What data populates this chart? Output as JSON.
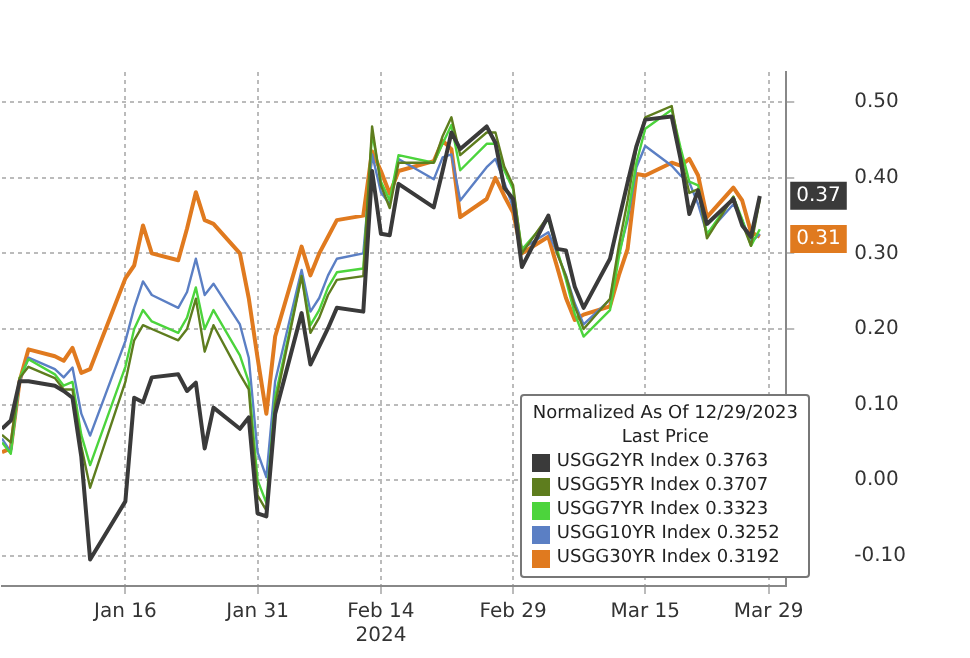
{
  "chart_data": {
    "type": "line",
    "x": [
      "2024-01-02",
      "2024-01-03",
      "2024-01-04",
      "2024-01-05",
      "2024-01-08",
      "2024-01-09",
      "2024-01-10",
      "2024-01-11",
      "2024-01-12",
      "2024-01-16",
      "2024-01-17",
      "2024-01-18",
      "2024-01-19",
      "2024-01-22",
      "2024-01-23",
      "2024-01-24",
      "2024-01-25",
      "2024-01-26",
      "2024-01-29",
      "2024-01-30",
      "2024-01-31",
      "2024-02-01",
      "2024-02-02",
      "2024-02-05",
      "2024-02-06",
      "2024-02-07",
      "2024-02-08",
      "2024-02-09",
      "2024-02-12",
      "2024-02-13",
      "2024-02-14",
      "2024-02-15",
      "2024-02-16",
      "2024-02-20",
      "2024-02-21",
      "2024-02-22",
      "2024-02-23",
      "2024-02-26",
      "2024-02-27",
      "2024-02-28",
      "2024-02-29",
      "2024-03-01",
      "2024-03-04",
      "2024-03-05",
      "2024-03-06",
      "2024-03-07",
      "2024-03-08",
      "2024-03-11",
      "2024-03-12",
      "2024-03-13",
      "2024-03-14",
      "2024-03-15",
      "2024-03-18",
      "2024-03-19",
      "2024-03-20",
      "2024-03-21",
      "2024-03-22",
      "2024-03-25",
      "2024-03-26",
      "2024-03-27",
      "2024-03-28"
    ],
    "series": [
      {
        "name": "USGG2YR Index 0.3763",
        "color": "#3a3a3a",
        "values": [
          0.068,
          0.079,
          0.131,
          0.131,
          0.125,
          0.118,
          0.109,
          0.031,
          -0.105,
          -0.028,
          0.109,
          0.103,
          0.136,
          0.14,
          0.118,
          0.129,
          0.042,
          0.096,
          0.068,
          0.083,
          -0.044,
          -0.048,
          0.088,
          0.221,
          0.153,
          0.177,
          0.201,
          0.228,
          0.223,
          0.409,
          0.326,
          0.324,
          0.392,
          0.361,
          0.409,
          0.46,
          0.438,
          0.468,
          0.446,
          0.387,
          0.372,
          0.282,
          0.35,
          0.306,
          0.304,
          0.256,
          0.228,
          0.293,
          0.344,
          0.394,
          0.442,
          0.477,
          0.481,
          0.425,
          0.352,
          0.383,
          0.339,
          0.372,
          0.337,
          0.322,
          0.376
        ]
      },
      {
        "name": "USGG5YR Index 0.3707",
        "color": "#5e7d1e",
        "values": [
          0.06,
          0.05,
          0.135,
          0.15,
          0.135,
          0.12,
          0.12,
          0.045,
          -0.01,
          0.13,
          0.185,
          0.205,
          0.2,
          0.185,
          0.2,
          0.24,
          0.17,
          0.205,
          0.14,
          0.12,
          -0.02,
          -0.04,
          0.1,
          0.27,
          0.195,
          0.215,
          0.245,
          0.265,
          0.27,
          0.468,
          0.39,
          0.36,
          0.42,
          0.42,
          0.455,
          0.48,
          0.43,
          0.46,
          0.46,
          0.415,
          0.39,
          0.3,
          0.35,
          0.3,
          0.27,
          0.23,
          0.2,
          0.24,
          0.31,
          0.37,
          0.44,
          0.48,
          0.495,
          0.43,
          0.38,
          0.385,
          0.32,
          0.375,
          0.34,
          0.31,
          0.371
        ]
      },
      {
        "name": "USGG7YR Index 0.3323",
        "color": "#4cd43c",
        "values": [
          0.05,
          0.035,
          0.135,
          0.16,
          0.14,
          0.125,
          0.13,
          0.06,
          0.02,
          0.15,
          0.2,
          0.225,
          0.21,
          0.195,
          0.215,
          0.255,
          0.2,
          0.225,
          0.165,
          0.13,
          0.0,
          -0.03,
          0.11,
          0.27,
          0.205,
          0.225,
          0.255,
          0.275,
          0.28,
          0.46,
          0.395,
          0.37,
          0.43,
          0.42,
          0.445,
          0.47,
          0.41,
          0.445,
          0.445,
          0.41,
          0.385,
          0.305,
          0.345,
          0.305,
          0.265,
          0.22,
          0.19,
          0.225,
          0.295,
          0.35,
          0.42,
          0.465,
          0.49,
          0.44,
          0.395,
          0.39,
          0.325,
          0.375,
          0.345,
          0.31,
          0.332
        ]
      },
      {
        "name": "USGG10YR Index 0.3252",
        "color": "#5b7fc4",
        "values": [
          0.055,
          0.037,
          0.131,
          0.162,
          0.147,
          0.136,
          0.149,
          0.088,
          0.059,
          0.184,
          0.228,
          0.263,
          0.245,
          0.228,
          0.249,
          0.293,
          0.245,
          0.26,
          0.206,
          0.162,
          0.037,
          0.004,
          0.131,
          0.278,
          0.223,
          0.241,
          0.271,
          0.293,
          0.3,
          0.431,
          0.381,
          0.365,
          0.425,
          0.398,
          0.427,
          0.431,
          0.37,
          0.414,
          0.425,
          0.394,
          0.361,
          0.306,
          0.328,
          0.3,
          0.271,
          0.234,
          0.206,
          0.239,
          0.3,
          0.344,
          0.414,
          0.442,
          0.416,
          0.403,
          0.394,
          0.365,
          0.326,
          0.365,
          0.344,
          0.315,
          0.326
        ]
      },
      {
        "name": "USGG30YR Index 0.3192",
        "color": "#e07a1f",
        "values": [
          0.037,
          0.042,
          0.131,
          0.173,
          0.164,
          0.158,
          0.175,
          0.142,
          0.147,
          0.267,
          0.284,
          0.337,
          0.3,
          0.291,
          0.333,
          0.381,
          0.344,
          0.339,
          0.3,
          0.241,
          0.162,
          0.088,
          0.19,
          0.309,
          0.271,
          0.3,
          0.322,
          0.344,
          0.35,
          0.435,
          0.409,
          0.379,
          0.409,
          0.422,
          0.449,
          0.438,
          0.348,
          0.372,
          0.4,
          0.376,
          0.354,
          0.3,
          0.322,
          0.282,
          0.241,
          0.212,
          0.219,
          0.23,
          0.271,
          0.306,
          0.405,
          0.403,
          0.42,
          0.416,
          0.425,
          0.403,
          0.348,
          0.387,
          0.37,
          0.328,
          0.322
        ]
      }
    ],
    "xlim": [
      "2024-01-02",
      "2024-03-31"
    ],
    "xticks": [
      {
        "value": "2024-01-16",
        "label": "Jan 16"
      },
      {
        "value": "2024-01-31",
        "label": "Jan 31"
      },
      {
        "value": "2024-02-14",
        "label": "Feb 14\n2024"
      },
      {
        "value": "2024-02-29",
        "label": "Feb 29"
      },
      {
        "value": "2024-03-15",
        "label": "Mar 15"
      },
      {
        "value": "2024-03-29",
        "label": "Mar 29"
      }
    ],
    "ylim": [
      -0.14,
      0.54
    ],
    "yticks": [
      {
        "value": -0.1,
        "label": "-0.10"
      },
      {
        "value": 0,
        "label": "0.00"
      },
      {
        "value": 0.1,
        "label": "0.10"
      },
      {
        "value": 0.2,
        "label": "0.20"
      },
      {
        "value": 0.3,
        "label": "0.30"
      },
      {
        "value": 0.4,
        "label": "0.40"
      },
      {
        "value": 0.5,
        "label": "0.50"
      }
    ],
    "annotations": [
      {
        "text": "0.37",
        "y": 0.3763
      },
      {
        "text": "0.31",
        "y": 0.3192
      }
    ],
    "legend_title": "Normalized As Of 12/29/2023\nLast Price",
    "legend": "bottom right",
    "grid": true,
    "line_style": "solid",
    "marker": "none"
  }
}
